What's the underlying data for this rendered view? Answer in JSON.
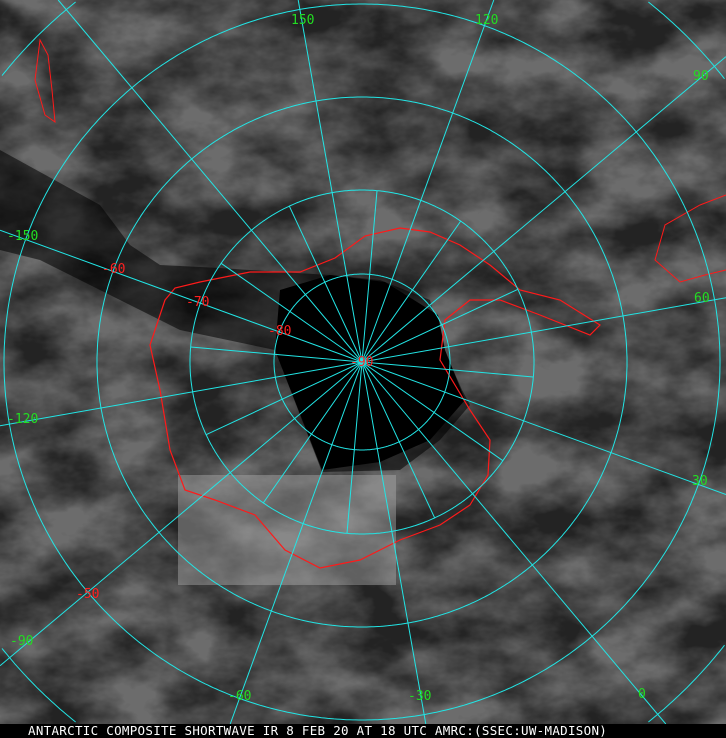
{
  "caption": "ANTARCTIC COMPOSITE SHORTWAVE IR 8 FEB 20 AT 18 UTC AMRC:(SSEC:UW-MADISON)",
  "colors": {
    "grid": "#22e5e5",
    "longitude_labels": "#22dd22",
    "latitude_labels": "#ff2020",
    "coastline": "#ff1a1a",
    "no_data": "#000000"
  },
  "longitude_labels": [
    "150",
    "120",
    "90",
    "60",
    "30",
    "0",
    "-30",
    "-60",
    "-90",
    "-120",
    "-150"
  ],
  "latitude_labels": [
    "-90",
    "-80",
    "-70",
    "-60",
    "-50"
  ]
}
